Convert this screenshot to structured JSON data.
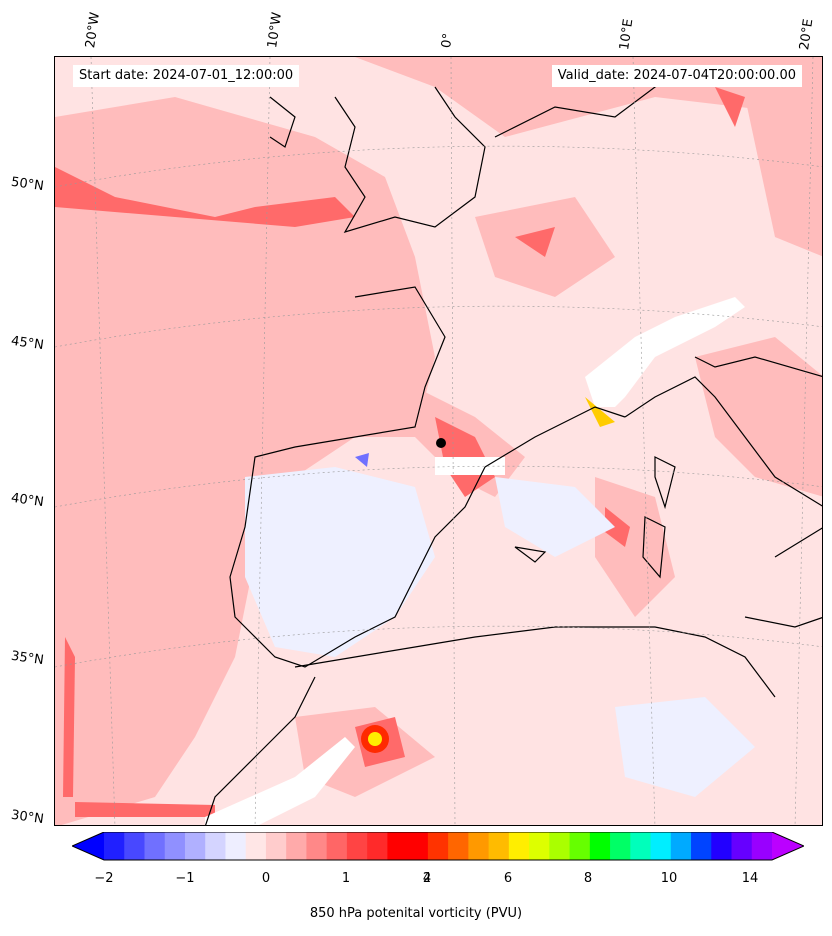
{
  "map": {
    "start_date": "Start date: 2024-07-01_12:00:00",
    "valid_date": "Valid_date: 2024-07-04T20:00:00.00",
    "lon_labels": [
      "20°W",
      "10°W",
      "0°",
      "10°E",
      "20°E"
    ],
    "lat_labels": [
      "50°N",
      "45°N",
      "40°N",
      "35°N",
      "30°N"
    ],
    "colors": {
      "background_weak_positive": "#ffe3e3",
      "moderate_positive": "#ffb0b0",
      "strong_positive": "#ff5050",
      "weak_negative": "#eef0ff",
      "coastline": "#000000"
    }
  },
  "colorbar": {
    "title": "850 hPa potenital vorticity (PVU)",
    "tick_labels": [
      "−2",
      "−1",
      "0",
      "1",
      "2",
      "4",
      "6",
      "8",
      "10",
      "14"
    ],
    "colors": [
      "#0000ff",
      "#2020ff",
      "#4848ff",
      "#7070ff",
      "#9090ff",
      "#b0b0ff",
      "#d4d4ff",
      "#eeeeff",
      "#ffe6e6",
      "#ffcccc",
      "#ffaaaa",
      "#ff8888",
      "#ff6666",
      "#ff4444",
      "#ff2a2a",
      "#ff0000",
      "#ff0000",
      "#ff3300",
      "#ff6600",
      "#ff9900",
      "#ffbb00",
      "#ffee00",
      "#ddff00",
      "#aaff00",
      "#66ff00",
      "#00ff00",
      "#00ff66",
      "#00ffbb",
      "#00eeff",
      "#00aaff",
      "#0044ff",
      "#2200ff",
      "#6600ff",
      "#9900ff",
      "#bb00ff"
    ]
  }
}
